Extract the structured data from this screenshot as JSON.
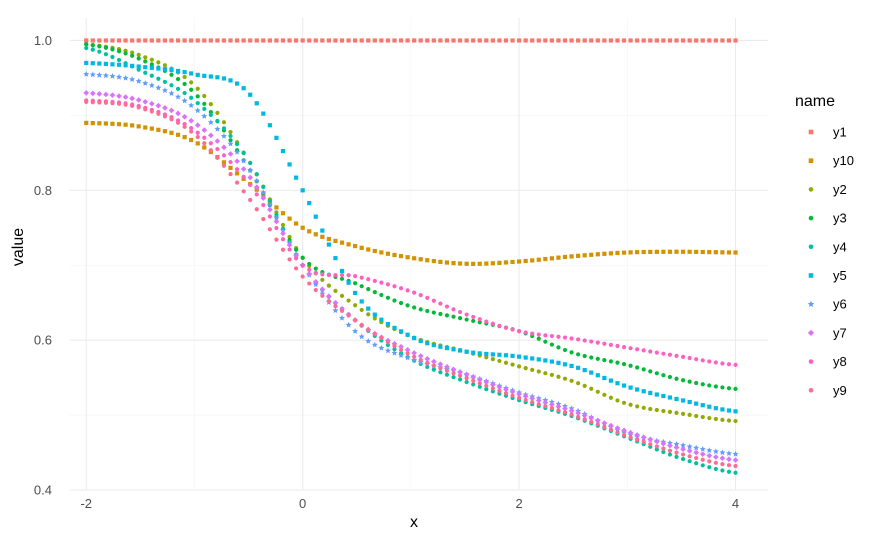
{
  "chart_data": {
    "type": "scatter",
    "title": "",
    "xlabel": "x",
    "ylabel": "value",
    "xlim": [
      -2.15,
      4.3
    ],
    "ylim": [
      0.4,
      1.03
    ],
    "x_ticks": [
      -2,
      0,
      2,
      4
    ],
    "x_tick_labels": [
      "-2",
      "0",
      "2",
      "4"
    ],
    "y_ticks": [
      0.4,
      0.6,
      0.8,
      1.0
    ],
    "y_tick_labels": [
      "0.4",
      "0.6",
      "0.8",
      "1.0"
    ],
    "grid": true,
    "legend_title": "name",
    "legend_position": "right",
    "x_range": [
      -2,
      4
    ],
    "points_per_series": 100,
    "series": [
      {
        "name": "y1",
        "color": "#F8766D",
        "shape": "square",
        "keypoints": [
          [
            -2,
            1.0
          ],
          [
            4,
            1.0
          ]
        ]
      },
      {
        "name": "y10",
        "color": "#D39200",
        "shape": "square",
        "keypoints": [
          [
            -2,
            0.89
          ],
          [
            -1.5,
            0.885
          ],
          [
            -1,
            0.865
          ],
          [
            -0.5,
            0.81
          ],
          [
            0,
            0.75
          ],
          [
            0.5,
            0.725
          ],
          [
            1,
            0.71
          ],
          [
            1.5,
            0.702
          ],
          [
            2,
            0.705
          ],
          [
            2.5,
            0.712
          ],
          [
            3,
            0.717
          ],
          [
            3.5,
            0.718
          ],
          [
            4,
            0.717
          ]
        ]
      },
      {
        "name": "y2",
        "color": "#93AA00",
        "shape": "circle",
        "keypoints": [
          [
            -2,
            0.995
          ],
          [
            -1.5,
            0.98
          ],
          [
            -1,
            0.94
          ],
          [
            -0.5,
            0.84
          ],
          [
            0,
            0.71
          ],
          [
            0.5,
            0.645
          ],
          [
            1,
            0.605
          ],
          [
            1.5,
            0.585
          ],
          [
            2,
            0.565
          ],
          [
            2.5,
            0.545
          ],
          [
            3,
            0.515
          ],
          [
            3.5,
            0.502
          ],
          [
            4,
            0.492
          ]
        ]
      },
      {
        "name": "y3",
        "color": "#00BA38",
        "shape": "circle",
        "keypoints": [
          [
            -2,
            0.995
          ],
          [
            -1.5,
            0.975
          ],
          [
            -1,
            0.93
          ],
          [
            -0.5,
            0.83
          ],
          [
            0,
            0.71
          ],
          [
            0.5,
            0.675
          ],
          [
            1,
            0.645
          ],
          [
            1.5,
            0.628
          ],
          [
            2,
            0.612
          ],
          [
            2.5,
            0.583
          ],
          [
            3,
            0.567
          ],
          [
            3.5,
            0.547
          ],
          [
            4,
            0.535
          ]
        ]
      },
      {
        "name": "y4",
        "color": "#00C19F",
        "shape": "circle",
        "keypoints": [
          [
            -2,
            0.99
          ],
          [
            -1.5,
            0.96
          ],
          [
            -1,
            0.92
          ],
          [
            -0.5,
            0.84
          ],
          [
            0,
            0.7
          ],
          [
            0.5,
            0.625
          ],
          [
            1,
            0.575
          ],
          [
            1.5,
            0.545
          ],
          [
            2,
            0.52
          ],
          [
            2.5,
            0.498
          ],
          [
            3,
            0.47
          ],
          [
            3.5,
            0.442
          ],
          [
            4,
            0.423
          ]
        ]
      },
      {
        "name": "y5",
        "color": "#00B9E3",
        "shape": "square",
        "keypoints": [
          [
            -2,
            0.97
          ],
          [
            -1.5,
            0.965
          ],
          [
            -1,
            0.955
          ],
          [
            -0.5,
            0.93
          ],
          [
            0,
            0.8
          ],
          [
            0.5,
            0.66
          ],
          [
            1,
            0.605
          ],
          [
            1.5,
            0.585
          ],
          [
            2,
            0.578
          ],
          [
            2.5,
            0.565
          ],
          [
            3,
            0.538
          ],
          [
            3.5,
            0.52
          ],
          [
            4,
            0.505
          ]
        ]
      },
      {
        "name": "y6",
        "color": "#619CFF",
        "shape": "star",
        "keypoints": [
          [
            -2,
            0.955
          ],
          [
            -1.5,
            0.945
          ],
          [
            -1,
            0.91
          ],
          [
            -0.5,
            0.83
          ],
          [
            0,
            0.7
          ],
          [
            0.5,
            0.61
          ],
          [
            1,
            0.575
          ],
          [
            1.5,
            0.555
          ],
          [
            2,
            0.53
          ],
          [
            2.5,
            0.508
          ],
          [
            3,
            0.475
          ],
          [
            3.5,
            0.46
          ],
          [
            4,
            0.448
          ]
        ]
      },
      {
        "name": "y7",
        "color": "#DB72FB",
        "shape": "diamond",
        "keypoints": [
          [
            -2,
            0.93
          ],
          [
            -1.5,
            0.92
          ],
          [
            -1,
            0.89
          ],
          [
            -0.5,
            0.82
          ],
          [
            0,
            0.7
          ],
          [
            0.5,
            0.625
          ],
          [
            1,
            0.585
          ],
          [
            1.5,
            0.555
          ],
          [
            2,
            0.528
          ],
          [
            2.5,
            0.505
          ],
          [
            3,
            0.478
          ],
          [
            3.5,
            0.455
          ],
          [
            4,
            0.44
          ]
        ]
      },
      {
        "name": "y8",
        "color": "#FF61C3",
        "shape": "circle",
        "keypoints": [
          [
            -2,
            0.92
          ],
          [
            -1.5,
            0.912
          ],
          [
            -1,
            0.88
          ],
          [
            -0.5,
            0.81
          ],
          [
            0,
            0.7
          ],
          [
            0.5,
            0.685
          ],
          [
            1,
            0.665
          ],
          [
            1.5,
            0.635
          ],
          [
            2,
            0.612
          ],
          [
            2.5,
            0.602
          ],
          [
            3,
            0.59
          ],
          [
            3.5,
            0.578
          ],
          [
            4,
            0.567
          ]
        ]
      },
      {
        "name": "y9",
        "color": "#FF6C91",
        "shape": "circle",
        "keypoints": [
          [
            -2,
            0.918
          ],
          [
            -1.5,
            0.91
          ],
          [
            -1,
            0.875
          ],
          [
            -0.5,
            0.79
          ],
          [
            0,
            0.685
          ],
          [
            0.5,
            0.625
          ],
          [
            1,
            0.58
          ],
          [
            1.5,
            0.55
          ],
          [
            2,
            0.523
          ],
          [
            2.5,
            0.5
          ],
          [
            3,
            0.472
          ],
          [
            3.5,
            0.448
          ],
          [
            4,
            0.432
          ]
        ]
      }
    ]
  }
}
